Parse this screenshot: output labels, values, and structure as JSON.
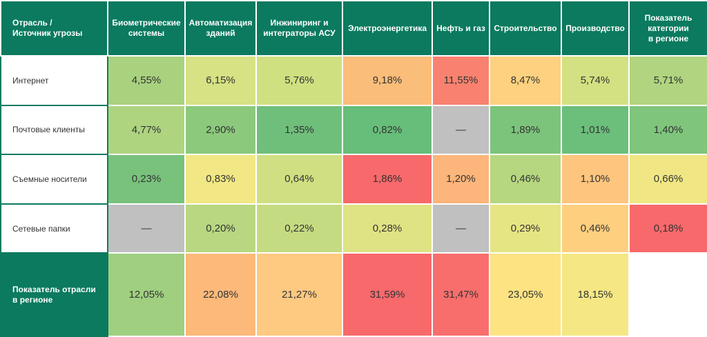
{
  "table": {
    "header": [
      "Отрасль /\nИсточник угрозы",
      "Биометрические\nсистемы",
      "Автоматизация\nзданий",
      "Инжиниринг и\nинтеграторы АСУ",
      "Электроэнергетика",
      "Нефть и газ",
      "Строительство",
      "Производство",
      "Показатель\nкатегории\nв регионе"
    ],
    "rows": [
      [
        "Интернет",
        "4,55%",
        "6,15%",
        "5,76%",
        "9,18%",
        "11,55%",
        "8,47%",
        "5,74%",
        "5,71%"
      ],
      [
        "Почтовые клиенты",
        "4,77%",
        "2,90%",
        "1,35%",
        "0,82%",
        "—",
        "1,89%",
        "1,01%",
        "1,40%"
      ],
      [
        "Съемные носители",
        "0,23%",
        "0,83%",
        "0,64%",
        "1,86%",
        "1,20%",
        "0,46%",
        "1,10%",
        "0,66%"
      ],
      [
        "Сетевые папки",
        "—",
        "0,20%",
        "0,22%",
        "0,28%",
        "—",
        "0,29%",
        "0,46%",
        "0,18%"
      ],
      [
        "Показатель отрасли\nв регионе",
        "12,05%",
        "22,08%",
        "21,27%",
        "31,59%",
        "31,47%",
        "23,05%",
        "18,15%"
      ]
    ],
    "colors": [
      [
        "#a9d27f",
        "#d6e283",
        "#cfe081",
        "#fbbd7a",
        "#f8826f",
        "#fdd17f",
        "#d3e182",
        "#b0d47f"
      ],
      [
        "#aed480",
        "#8cc97d",
        "#6fbf7b",
        "#67bd7a",
        "#c0c0c0",
        "#7cc47c",
        "#6cbe7b",
        "#7fc57c"
      ],
      [
        "#78c27c",
        "#f1e784",
        "#cfdf81",
        "#f8696b",
        "#fcb57a",
        "#b6d680",
        "#fdc57d",
        "#f0e784"
      ],
      [
        "#c0c0c0",
        "#b8d780",
        "#c5db81",
        "#dfe383",
        "#c0c0c0",
        "#e6e583",
        "#fdcf7f",
        "#f8696b"
      ],
      [
        "#9fcf7f",
        "#fcb97a",
        "#fec980",
        "#f8696b",
        "#f86e6c",
        "#fee383",
        "#f5e884"
      ]
    ]
  }
}
